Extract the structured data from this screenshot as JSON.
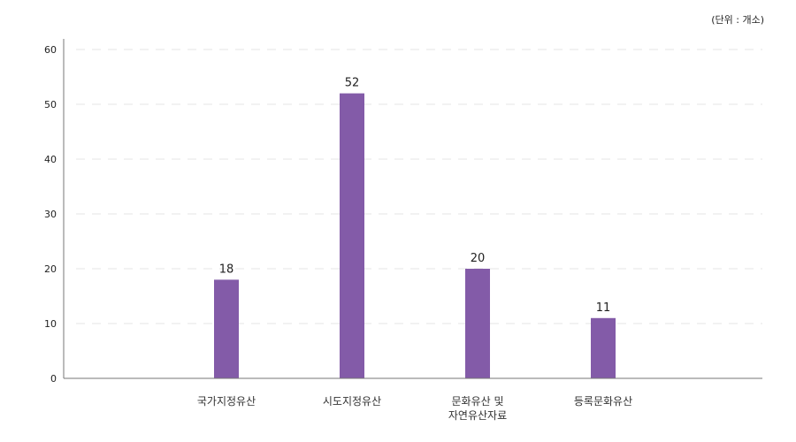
{
  "unit_label": "(단위 : 개소)",
  "chart_data": {
    "type": "bar",
    "categories": [
      [
        "국가지정유산"
      ],
      [
        "시도지정유산"
      ],
      [
        "문화유산 및",
        "자연유산자료"
      ],
      [
        "등록문화유산"
      ]
    ],
    "values": [
      18,
      52,
      20,
      11
    ],
    "ylim": [
      0,
      60
    ],
    "yticks": [
      0,
      10,
      20,
      30,
      40,
      50,
      60
    ],
    "grid": true,
    "bar_color": "#835ba8"
  }
}
